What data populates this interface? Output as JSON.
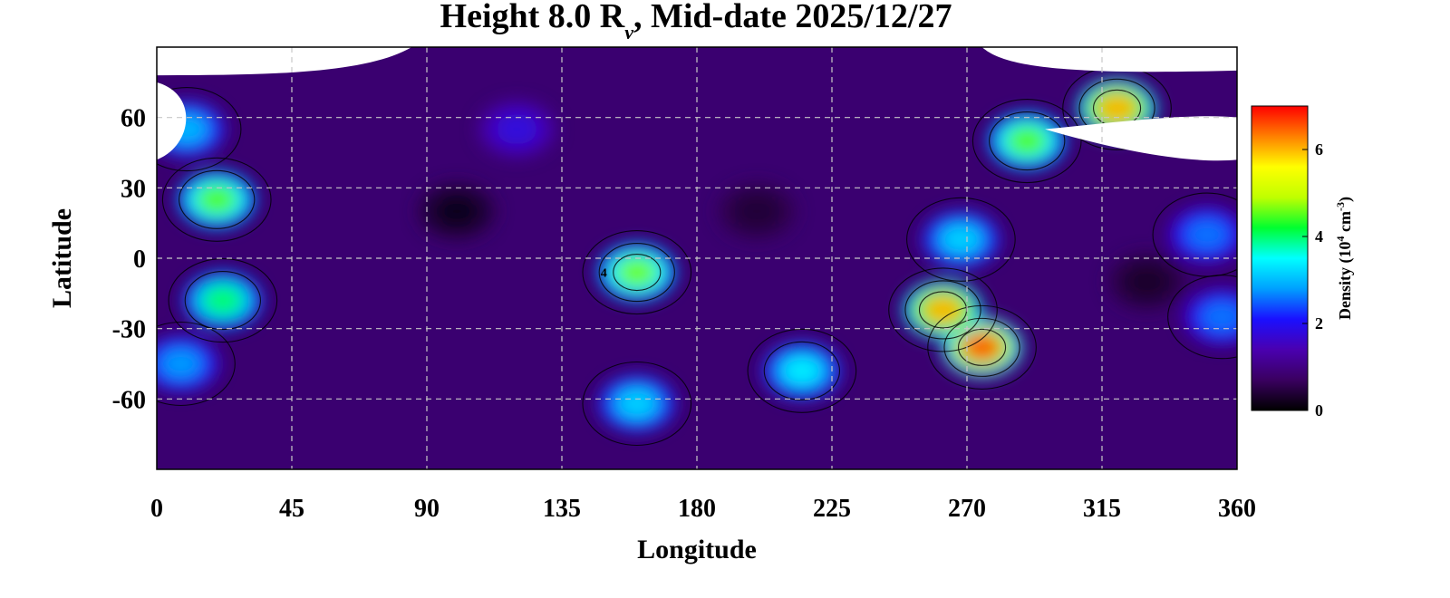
{
  "chart_data": {
    "type": "heatmap",
    "title": {
      "prefix": "Height 8.0 R",
      "subscript": "v",
      "suffix": ", Mid-date 2025/12/27"
    },
    "xlabel": "Longitude",
    "ylabel": "Latitude",
    "xlim": [
      0,
      360
    ],
    "ylim": [
      -90,
      90
    ],
    "xticks": [
      0,
      45,
      90,
      135,
      180,
      225,
      270,
      315,
      360
    ],
    "yticks": [
      -60,
      -30,
      0,
      30,
      60
    ],
    "xtick_labels": [
      "0",
      "45",
      "90",
      "135",
      "180",
      "225",
      "270",
      "315",
      "360"
    ],
    "ytick_labels": [
      "-60",
      "-30",
      "0",
      "30",
      "60"
    ],
    "grid": true,
    "colorbar": {
      "label": {
        "prefix": "Density (10",
        "exp1": "4",
        "middle": " cm",
        "exp2": "-3",
        "suffix": ")"
      },
      "range": [
        0,
        7
      ],
      "ticks": [
        0,
        2,
        4,
        6
      ],
      "tick_labels": [
        "0",
        "2",
        "4",
        "6"
      ],
      "colors": [
        "#000000",
        "#3a0060",
        "#4a00b0",
        "#1a10ff",
        "#00a0ff",
        "#00ffff",
        "#00ff30",
        "#c0ff00",
        "#ffff00",
        "#ff8000",
        "#ff0000"
      ]
    },
    "contour_label": "4",
    "no_data_color": "#ffffff",
    "background_density": 0.8,
    "features": [
      {
        "lon": 20,
        "lat": 25,
        "density": 4.5
      },
      {
        "lon": 22,
        "lat": -18,
        "density": 4.0
      },
      {
        "lon": 10,
        "lat": 55,
        "density": 3.0
      },
      {
        "lon": 8,
        "lat": -45,
        "density": 2.8
      },
      {
        "lon": 120,
        "lat": 55,
        "density": 1.8
      },
      {
        "lon": 160,
        "lat": -6,
        "density": 4.6
      },
      {
        "lon": 275,
        "lat": -38,
        "density": 6.5
      },
      {
        "lon": 262,
        "lat": -22,
        "density": 6.0
      },
      {
        "lon": 268,
        "lat": 8,
        "density": 3.2
      },
      {
        "lon": 290,
        "lat": 50,
        "density": 4.5
      },
      {
        "lon": 320,
        "lat": 64,
        "density": 6.0
      },
      {
        "lon": 215,
        "lat": -48,
        "density": 3.4
      },
      {
        "lon": 160,
        "lat": -62,
        "density": 3.2
      },
      {
        "lon": 350,
        "lat": 10,
        "density": 2.6
      },
      {
        "lon": 355,
        "lat": -25,
        "density": 2.6
      },
      {
        "lon": 100,
        "lat": 20,
        "density": 0.2
      },
      {
        "lon": 330,
        "lat": -10,
        "density": 0.3
      },
      {
        "lon": 200,
        "lat": 20,
        "density": 0.4
      }
    ]
  }
}
